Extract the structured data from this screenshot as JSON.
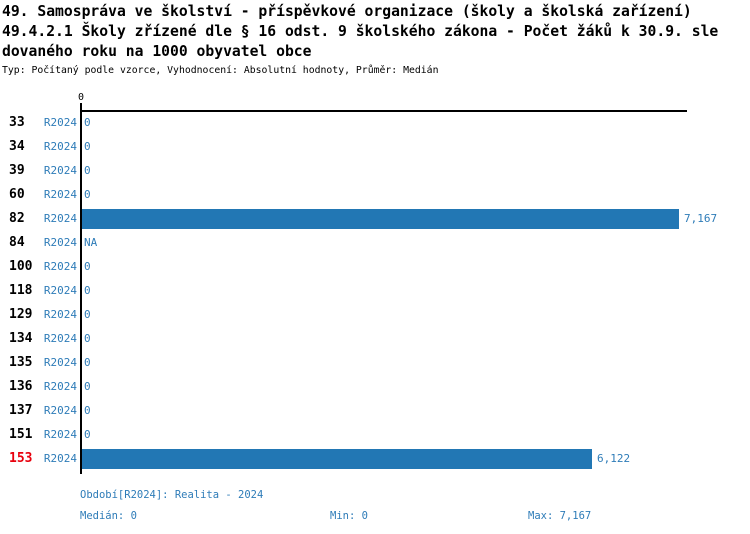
{
  "title": {
    "line1": "49. Samospráva ve školství - příspěvkové organizace (školy a školská zařízení)",
    "line2": "49.4.2.1 Školy zřízené dle § 16 odst. 9 školského zákona - Počet žáků k 30.9. sle",
    "line3": "dovaného roku na 1000 obyvatel obce",
    "meta": "Typ: Počítaný podle vzorce, Vyhodnocení: Absolutní hodnoty, Průměr: Medián"
  },
  "chart_data": {
    "type": "bar",
    "orientation": "horizontal",
    "title": "49.4.2.1 Školy zřízené dle § 16 odst. 9 školského zákona - Počet žáků k 30.9. sledovaného roku na 1000 obyvatel obce",
    "series_label": "R2024",
    "categories": [
      "33",
      "34",
      "39",
      "60",
      "82",
      "84",
      "100",
      "118",
      "129",
      "134",
      "135",
      "136",
      "137",
      "151",
      "153"
    ],
    "values": [
      0,
      0,
      0,
      0,
      7.167,
      null,
      0,
      0,
      0,
      0,
      0,
      0,
      0,
      0,
      6.122
    ],
    "value_labels": [
      "0",
      "0",
      "0",
      "0",
      "7,167",
      "NA",
      "0",
      "0",
      "0",
      "0",
      "0",
      "0",
      "0",
      "0",
      "6,122"
    ],
    "highlighted_category": "153",
    "axis_tick_label": "0",
    "xlim": [
      0,
      7.28
    ],
    "grid": false,
    "legend": "none"
  },
  "footer": {
    "period_info": "Období[R2024]: Realita - 2024",
    "median_label": "Medián: 0",
    "min_label": "Min: 0",
    "max_label": "Max: 7,167"
  },
  "colors": {
    "bar": "#2277B4",
    "blue_text": "#2E7CB8",
    "highlight": "#E8000D",
    "axis": "#000000",
    "background": "#FFFFFF"
  }
}
